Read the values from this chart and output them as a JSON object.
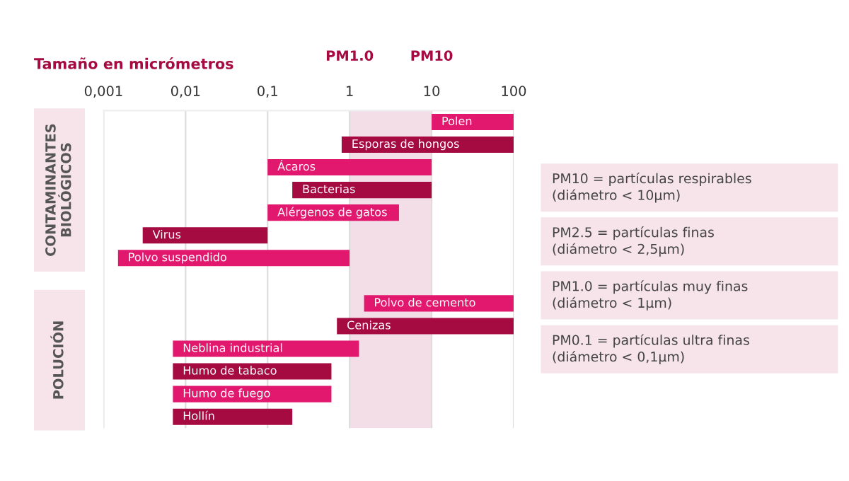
{
  "chart_data": {
    "type": "bar",
    "orientation": "horizontal",
    "title": "Tamaño en micrómetros",
    "categories": [
      "Polen",
      "Esporas de hongos",
      "Ácaros",
      "Bacterias",
      "Alérgenos de gatos",
      "Virus",
      "Polvo suspendido",
      null,
      "Polvo de cemento",
      "Cenizas",
      "Neblina industrial",
      "Humo de tabaco",
      "Humo de fuego",
      "Hollín"
    ],
    "base": [
      10,
      0.8,
      0.1,
      0.2,
      0.1,
      0.003,
      0.0015,
      null,
      1.5,
      0.7,
      0.007,
      0.007,
      0.007,
      0.007
    ],
    "values": [
      90,
      99.2,
      9.9,
      9.8,
      3.9,
      0.097,
      0.9985,
      null,
      98.5,
      99.3,
      1.293,
      0.593,
      0.593,
      0.193
    ],
    "colors": [
      "#e2186f",
      "#a50a40",
      "#e2186f",
      "#a50a40",
      "#e2186f",
      "#a50a40",
      "#e2186f",
      null,
      "#e2186f",
      "#a50a40",
      "#e2186f",
      "#a50a40",
      "#e2186f",
      "#a50a40"
    ],
    "log": "x",
    "xlim": [
      0.001,
      100
    ],
    "xticks": [
      {
        "value": 0.001,
        "label": "0,001"
      },
      {
        "value": 0.01,
        "label": "0,01"
      },
      {
        "value": 0.1,
        "label": "0,1"
      },
      1,
      10,
      100
    ],
    "grid": "x",
    "tick_labels": "x",
    "bands": [
      {
        "axis": "x",
        "from": 1,
        "to": 10,
        "color": "#f3dde6"
      }
    ],
    "annotations": [
      "PM1.0",
      "PM10",
      "CONTAMINANTES\nBIOLÓGICOS",
      "POLUCIÓN",
      "PM10 = partículas respirables\n(diámetro < 10µm)",
      "PM2.5 = partículas finas\n(diámetro < 2,5µm)",
      "PM1.0 = partículas muy finas\n(diámetro < 1µm)",
      "PM0.1 = partículas ultra finas\n(diámetro < 0,1µm)"
    ]
  }
}
